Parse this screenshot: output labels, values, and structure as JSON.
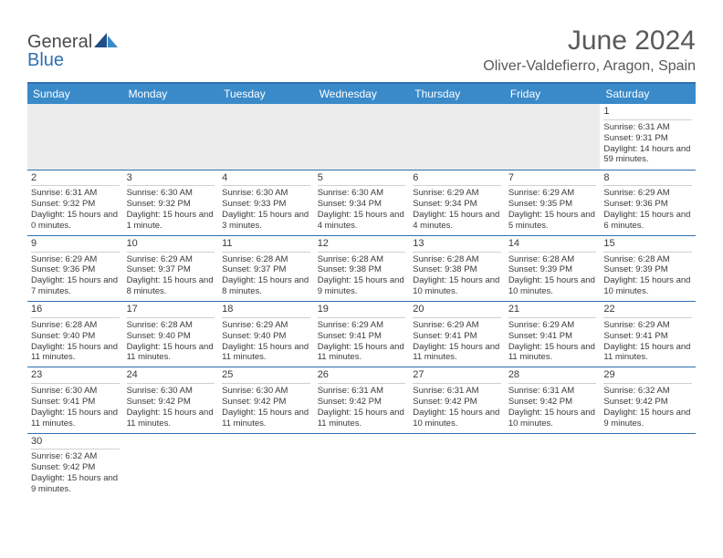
{
  "brand": {
    "name_main": "General",
    "name_accent": "Blue"
  },
  "title": "June 2024",
  "location": "Oliver-Valdefierro, Aragon, Spain",
  "colors": {
    "header_bg": "#3a8ac9",
    "header_text": "#ffffff",
    "rule": "#2f6fb0",
    "text": "#3a3a3a",
    "muted_bg": "#ececec",
    "title_text": "#595959"
  },
  "day_headers": [
    "Sunday",
    "Monday",
    "Tuesday",
    "Wednesday",
    "Thursday",
    "Friday",
    "Saturday"
  ],
  "weeks": [
    [
      null,
      null,
      null,
      null,
      null,
      null,
      {
        "n": "1",
        "sunrise": "6:31 AM",
        "sunset": "9:31 PM",
        "daylight": "14 hours and 59 minutes."
      }
    ],
    [
      {
        "n": "2",
        "sunrise": "6:31 AM",
        "sunset": "9:32 PM",
        "daylight": "15 hours and 0 minutes."
      },
      {
        "n": "3",
        "sunrise": "6:30 AM",
        "sunset": "9:32 PM",
        "daylight": "15 hours and 1 minute."
      },
      {
        "n": "4",
        "sunrise": "6:30 AM",
        "sunset": "9:33 PM",
        "daylight": "15 hours and 3 minutes."
      },
      {
        "n": "5",
        "sunrise": "6:30 AM",
        "sunset": "9:34 PM",
        "daylight": "15 hours and 4 minutes."
      },
      {
        "n": "6",
        "sunrise": "6:29 AM",
        "sunset": "9:34 PM",
        "daylight": "15 hours and 4 minutes."
      },
      {
        "n": "7",
        "sunrise": "6:29 AM",
        "sunset": "9:35 PM",
        "daylight": "15 hours and 5 minutes."
      },
      {
        "n": "8",
        "sunrise": "6:29 AM",
        "sunset": "9:36 PM",
        "daylight": "15 hours and 6 minutes."
      }
    ],
    [
      {
        "n": "9",
        "sunrise": "6:29 AM",
        "sunset": "9:36 PM",
        "daylight": "15 hours and 7 minutes."
      },
      {
        "n": "10",
        "sunrise": "6:29 AM",
        "sunset": "9:37 PM",
        "daylight": "15 hours and 8 minutes."
      },
      {
        "n": "11",
        "sunrise": "6:28 AM",
        "sunset": "9:37 PM",
        "daylight": "15 hours and 8 minutes."
      },
      {
        "n": "12",
        "sunrise": "6:28 AM",
        "sunset": "9:38 PM",
        "daylight": "15 hours and 9 minutes."
      },
      {
        "n": "13",
        "sunrise": "6:28 AM",
        "sunset": "9:38 PM",
        "daylight": "15 hours and 10 minutes."
      },
      {
        "n": "14",
        "sunrise": "6:28 AM",
        "sunset": "9:39 PM",
        "daylight": "15 hours and 10 minutes."
      },
      {
        "n": "15",
        "sunrise": "6:28 AM",
        "sunset": "9:39 PM",
        "daylight": "15 hours and 10 minutes."
      }
    ],
    [
      {
        "n": "16",
        "sunrise": "6:28 AM",
        "sunset": "9:40 PM",
        "daylight": "15 hours and 11 minutes."
      },
      {
        "n": "17",
        "sunrise": "6:28 AM",
        "sunset": "9:40 PM",
        "daylight": "15 hours and 11 minutes."
      },
      {
        "n": "18",
        "sunrise": "6:29 AM",
        "sunset": "9:40 PM",
        "daylight": "15 hours and 11 minutes."
      },
      {
        "n": "19",
        "sunrise": "6:29 AM",
        "sunset": "9:41 PM",
        "daylight": "15 hours and 11 minutes."
      },
      {
        "n": "20",
        "sunrise": "6:29 AM",
        "sunset": "9:41 PM",
        "daylight": "15 hours and 11 minutes."
      },
      {
        "n": "21",
        "sunrise": "6:29 AM",
        "sunset": "9:41 PM",
        "daylight": "15 hours and 11 minutes."
      },
      {
        "n": "22",
        "sunrise": "6:29 AM",
        "sunset": "9:41 PM",
        "daylight": "15 hours and 11 minutes."
      }
    ],
    [
      {
        "n": "23",
        "sunrise": "6:30 AM",
        "sunset": "9:41 PM",
        "daylight": "15 hours and 11 minutes."
      },
      {
        "n": "24",
        "sunrise": "6:30 AM",
        "sunset": "9:42 PM",
        "daylight": "15 hours and 11 minutes."
      },
      {
        "n": "25",
        "sunrise": "6:30 AM",
        "sunset": "9:42 PM",
        "daylight": "15 hours and 11 minutes."
      },
      {
        "n": "26",
        "sunrise": "6:31 AM",
        "sunset": "9:42 PM",
        "daylight": "15 hours and 11 minutes."
      },
      {
        "n": "27",
        "sunrise": "6:31 AM",
        "sunset": "9:42 PM",
        "daylight": "15 hours and 10 minutes."
      },
      {
        "n": "28",
        "sunrise": "6:31 AM",
        "sunset": "9:42 PM",
        "daylight": "15 hours and 10 minutes."
      },
      {
        "n": "29",
        "sunrise": "6:32 AM",
        "sunset": "9:42 PM",
        "daylight": "15 hours and 9 minutes."
      }
    ],
    [
      {
        "n": "30",
        "sunrise": "6:32 AM",
        "sunset": "9:42 PM",
        "daylight": "15 hours and 9 minutes."
      },
      null,
      null,
      null,
      null,
      null,
      null
    ]
  ],
  "labels": {
    "sunrise": "Sunrise: ",
    "sunset": "Sunset: ",
    "daylight": "Daylight: "
  }
}
